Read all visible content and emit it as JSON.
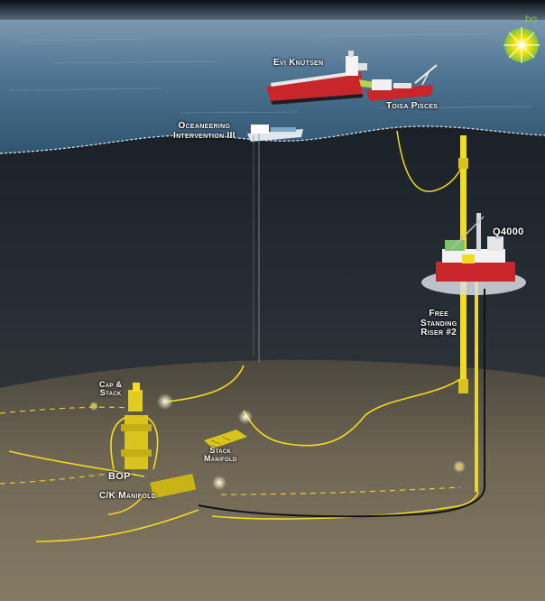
{
  "brand": {
    "logo_text": "bo",
    "logo_color": "#7dc242",
    "sun_color": "#f7e400"
  },
  "colors": {
    "sea_surface": "#4d7391",
    "deep_water": "#1b2129",
    "seabed": "#6b6250",
    "pipe_yellow": "#f2dc1f",
    "hull_red": "#c8262b"
  },
  "labels": {
    "evi_knutsen": "Evi Knutsen",
    "toisa_pisces": "Toisa Pisces",
    "oceaneering_line1": "Oceaneering",
    "oceaneering_line2": "Intervention III",
    "q4000": "Q4000",
    "free_line1": "Free",
    "free_line2": "Standing",
    "free_line3": "Riser #2",
    "cap_line1": "Cap &",
    "cap_line2": "Stack",
    "stack_manifold_line1": "Stack",
    "stack_manifold_line2": "Manifold",
    "bop": "BOP",
    "ck_manifold": "C/K Manifold"
  }
}
